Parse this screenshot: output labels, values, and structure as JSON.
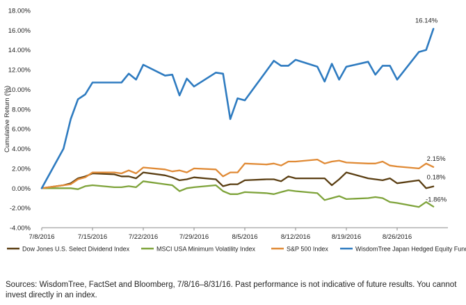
{
  "chart_data": {
    "type": "line",
    "ylabel": "Cumulative Return (%)",
    "xlabel": "",
    "ylim": [
      -4,
      18
    ],
    "yticks": [
      -4,
      -2,
      0,
      2,
      4,
      6,
      8,
      10,
      12,
      14,
      16,
      18
    ],
    "ytick_labels": [
      "-4.00%",
      "-2.00%",
      "0.00%",
      "2.00%",
      "4.00%",
      "6.00%",
      "8.00%",
      "10.00%",
      "12.00%",
      "14.00%",
      "16.00%",
      "18.00%"
    ],
    "xlim": [
      "2016-07-08",
      "2016-09-02"
    ],
    "xtick_labels": [
      "7/8/2016",
      "7/15/2016",
      "7/22/2016",
      "7/29/2016",
      "8/5/2016",
      "8/12/2016",
      "8/19/2016",
      "8/26/2016"
    ],
    "xticks": [
      "2016-07-08",
      "2016-07-15",
      "2016-07-22",
      "2016-07-29",
      "2016-08-05",
      "2016-08-12",
      "2016-08-19",
      "2016-08-26"
    ],
    "x": [
      "2016-07-08",
      "2016-07-11",
      "2016-07-12",
      "2016-07-13",
      "2016-07-14",
      "2016-07-15",
      "2016-07-18",
      "2016-07-19",
      "2016-07-20",
      "2016-07-21",
      "2016-07-22",
      "2016-07-25",
      "2016-07-26",
      "2016-07-27",
      "2016-07-28",
      "2016-07-29",
      "2016-08-01",
      "2016-08-02",
      "2016-08-03",
      "2016-08-04",
      "2016-08-05",
      "2016-08-08",
      "2016-08-09",
      "2016-08-10",
      "2016-08-11",
      "2016-08-12",
      "2016-08-15",
      "2016-08-16",
      "2016-08-17",
      "2016-08-18",
      "2016-08-19",
      "2016-08-22",
      "2016-08-23",
      "2016-08-24",
      "2016-08-25",
      "2016-08-26",
      "2016-08-29",
      "2016-08-30",
      "2016-08-31"
    ],
    "series": [
      {
        "name": "Dow Jones U.S. Select Dividend Index",
        "color": "#5a3e12",
        "values": [
          0,
          0.3,
          0.5,
          1.0,
          1.2,
          1.5,
          1.4,
          1.2,
          1.2,
          1.0,
          1.6,
          1.3,
          1.1,
          0.8,
          0.9,
          1.1,
          0.9,
          0.2,
          0.4,
          0.4,
          0.8,
          0.9,
          0.9,
          0.7,
          1.2,
          1.0,
          1.0,
          1.0,
          0.3,
          0.9,
          1.6,
          1.0,
          0.9,
          0.8,
          1.0,
          0.5,
          0.8,
          0.0,
          0.18
        ],
        "end_label": "0.18%"
      },
      {
        "name": "MSCI USA Minimum Volatility Index",
        "color": "#7ea33a",
        "values": [
          0,
          0.0,
          0.0,
          -0.1,
          0.2,
          0.3,
          0.1,
          0.1,
          0.2,
          0.1,
          0.7,
          0.4,
          0.3,
          -0.3,
          0.0,
          0.1,
          0.3,
          -0.3,
          -0.6,
          -0.6,
          -0.4,
          -0.5,
          -0.6,
          -0.4,
          -0.2,
          -0.3,
          -0.5,
          -1.2,
          -1.0,
          -0.8,
          -1.1,
          -1.0,
          -0.9,
          -1.0,
          -1.4,
          -1.5,
          -1.9,
          -1.4,
          -1.86
        ],
        "end_label": "-1.86%"
      },
      {
        "name": "S&P 500 Index",
        "color": "#e08a35",
        "values": [
          0,
          0.3,
          0.4,
          0.9,
          1.1,
          1.6,
          1.6,
          1.5,
          1.8,
          1.5,
          2.1,
          1.9,
          1.7,
          1.8,
          1.6,
          2.0,
          1.9,
          1.2,
          1.6,
          1.6,
          2.5,
          2.4,
          2.5,
          2.3,
          2.7,
          2.7,
          2.9,
          2.5,
          2.7,
          2.8,
          2.6,
          2.5,
          2.5,
          2.7,
          2.3,
          2.2,
          2.0,
          2.5,
          2.15
        ],
        "end_label": "2.15%"
      },
      {
        "name": "WisdomTree Japan Hedged Equity Fund",
        "color": "#2e7bc0",
        "values": [
          0,
          4.0,
          7.0,
          9.0,
          9.5,
          10.7,
          10.7,
          10.7,
          11.6,
          11.0,
          12.5,
          11.4,
          11.5,
          9.4,
          11.1,
          10.3,
          11.7,
          11.6,
          7.0,
          9.1,
          8.9,
          11.9,
          12.9,
          12.4,
          12.4,
          13.0,
          12.3,
          10.8,
          12.6,
          11.0,
          12.3,
          12.8,
          11.5,
          12.4,
          12.4,
          11.0,
          13.8,
          14.0,
          16.14
        ],
        "end_label": "16.14%"
      }
    ],
    "legend_position": "bottom",
    "grid": false
  },
  "footer": {
    "source_text": "Sources: WisdomTree, FactSet and Bloomberg, 7/8/16–8/31/16. Past performance is not indicative of future results. You cannot invest directly in an index."
  }
}
